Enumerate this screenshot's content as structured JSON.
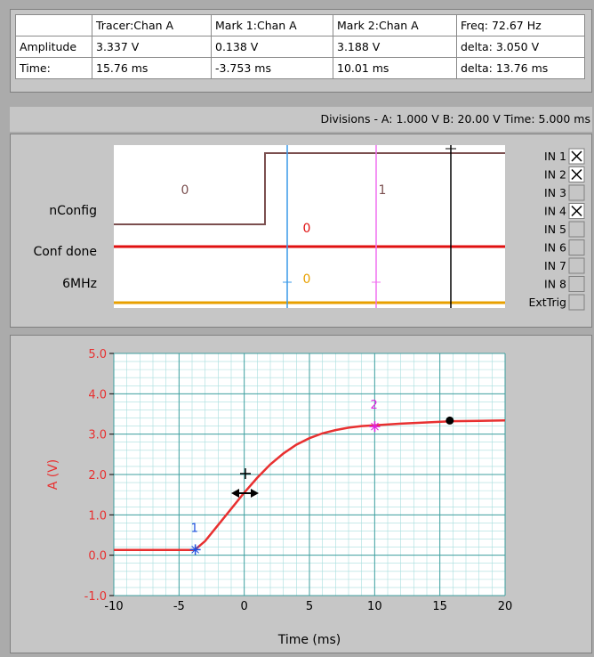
{
  "table": {
    "headers": [
      "",
      "Tracer:Chan A",
      "Mark 1:Chan A",
      "Mark 2:Chan A",
      "Freq:  72.67 Hz"
    ],
    "rows": [
      {
        "label": "Amplitude",
        "tracer": "3.337 V",
        "mark1": "0.138 V",
        "mark2": "3.188 V",
        "extra": "delta:  3.050 V"
      },
      {
        "label": "Time:",
        "tracer": "15.76 ms",
        "mark1": "-3.753 ms",
        "mark2": "10.01 ms",
        "extra": "delta:  13.76 ms"
      }
    ]
  },
  "divisions": "Divisions -  A: 1.000 V    B: 20.00 V    Time: 5.000 ms",
  "digital": {
    "channels": [
      {
        "name": "nConfig",
        "value_low": "0",
        "value_high": "1",
        "color": "#7b4f4f"
      },
      {
        "name": "Conf done",
        "value": "0",
        "color": "#e01010"
      },
      {
        "name": "6MHz",
        "value": "0",
        "color": "#e8a000"
      }
    ],
    "inputs": [
      {
        "label": "IN 1",
        "checked": true
      },
      {
        "label": "IN 2",
        "checked": true
      },
      {
        "label": "IN 3",
        "checked": false
      },
      {
        "label": "IN 4",
        "checked": true
      },
      {
        "label": "IN 5",
        "checked": false
      },
      {
        "label": "IN 6",
        "checked": false
      },
      {
        "label": "IN 7",
        "checked": false
      },
      {
        "label": "IN 8",
        "checked": false
      },
      {
        "label": "ExtTrig",
        "checked": false
      }
    ]
  },
  "chart_data": {
    "type": "line",
    "xlabel": "Time (ms)",
    "ylabel": "A (V)",
    "xlim": [
      -10,
      20
    ],
    "ylim": [
      -1.0,
      5.0
    ],
    "xticks": [
      "-10",
      "-5",
      "0",
      "5",
      "10",
      "15",
      "20"
    ],
    "yticks": [
      "-1.0",
      "0.0",
      "1.0",
      "2.0",
      "3.0",
      "4.0",
      "5.0"
    ],
    "grid": true,
    "series": [
      {
        "color": "#e83030",
        "x": [
          -10,
          -3.8,
          -3,
          -2,
          -1,
          0,
          1,
          2,
          3,
          4,
          5,
          6,
          7,
          8,
          9,
          10,
          12,
          14,
          16,
          18,
          20
        ],
        "y": [
          0.13,
          0.13,
          0.35,
          0.75,
          1.15,
          1.55,
          1.92,
          2.25,
          2.52,
          2.74,
          2.9,
          3.02,
          3.1,
          3.16,
          3.2,
          3.22,
          3.26,
          3.29,
          3.32,
          3.33,
          3.34
        ]
      }
    ],
    "markers": [
      {
        "label": "1",
        "x": -3.753,
        "y": 0.138,
        "color": "#2050e0"
      },
      {
        "label": "2",
        "x": 10.01,
        "y": 3.188,
        "color": "#e020e0"
      },
      {
        "label": "",
        "x": 15.76,
        "y": 3.337,
        "color": "#000000"
      }
    ]
  },
  "colors": {
    "cursor1": "#3a9ae8",
    "cursor2": "#f070f0",
    "tracer": "#000000",
    "grid": "#a8dede"
  }
}
